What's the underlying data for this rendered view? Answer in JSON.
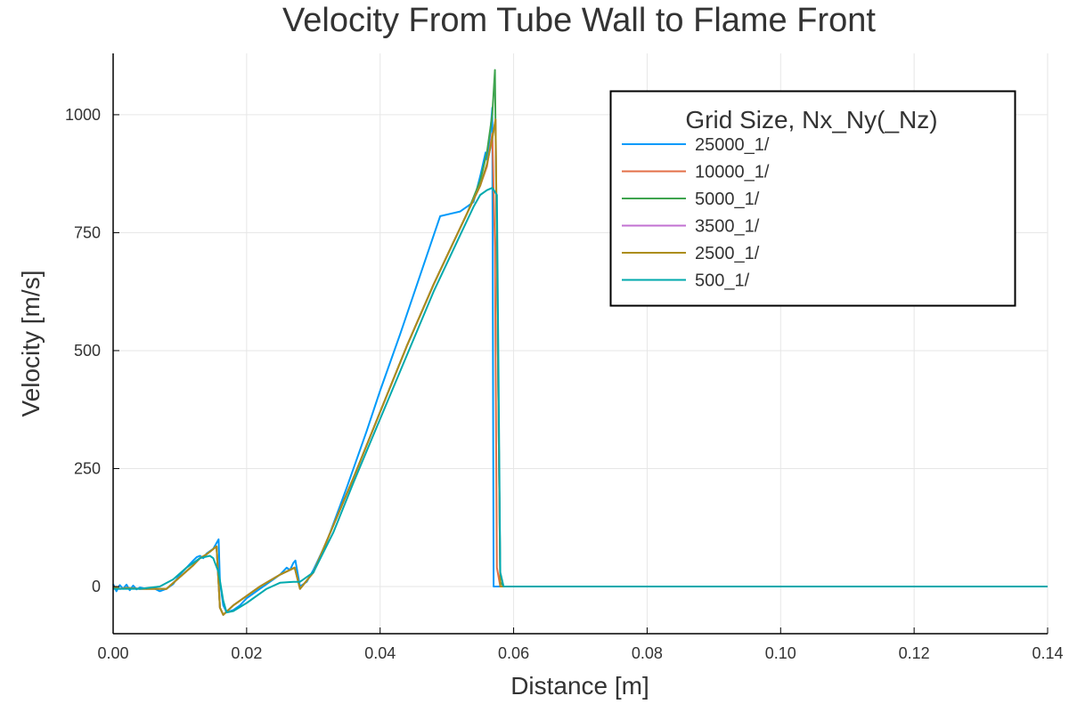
{
  "chart_data": {
    "type": "line",
    "title": "Velocity From Tube Wall to Flame Front",
    "xlabel": "Distance [m]",
    "ylabel": "Velocity [m/s]",
    "xlim": [
      0.0,
      0.14
    ],
    "ylim": [
      -100,
      1130
    ],
    "xticks": [
      0.0,
      0.02,
      0.04,
      0.06,
      0.08,
      0.1,
      0.12,
      0.14
    ],
    "xtick_labels": [
      "0.00",
      "0.02",
      "0.04",
      "0.06",
      "0.08",
      "0.10",
      "0.12",
      "0.14"
    ],
    "yticks": [
      0,
      250,
      500,
      750,
      1000
    ],
    "ytick_labels": [
      "0",
      "250",
      "500",
      "750",
      "1000"
    ],
    "grid": true,
    "legend": {
      "title": "Grid Size, Nx_Ny(_Nz)",
      "position": "top-right"
    },
    "series": [
      {
        "name": "25000_1/",
        "color": "#009AFA",
        "x": [
          0.0,
          0.0005,
          0.001,
          0.0015,
          0.002,
          0.0025,
          0.003,
          0.0035,
          0.004,
          0.005,
          0.006,
          0.007,
          0.008,
          0.009,
          0.01,
          0.011,
          0.012,
          0.0125,
          0.013,
          0.0135,
          0.014,
          0.015,
          0.0158,
          0.016,
          0.0165,
          0.017,
          0.018,
          0.019,
          0.02,
          0.022,
          0.024,
          0.025,
          0.026,
          0.0265,
          0.027,
          0.0273,
          0.028,
          0.029,
          0.03,
          0.032,
          0.035,
          0.038,
          0.04,
          0.043,
          0.046,
          0.049,
          0.052,
          0.053,
          0.054,
          0.055,
          0.0558,
          0.056,
          0.0565,
          0.0568,
          0.057,
          0.0575,
          0.06,
          0.08,
          0.1,
          0.12,
          0.14
        ],
        "y": [
          5,
          -10,
          3,
          -5,
          4,
          -8,
          2,
          -6,
          -2,
          -5,
          -3,
          -10,
          -5,
          5,
          25,
          40,
          55,
          62,
          65,
          60,
          70,
          80,
          100,
          10,
          -40,
          -55,
          -50,
          -40,
          -25,
          -5,
          15,
          25,
          40,
          35,
          50,
          55,
          0,
          10,
          35,
          95,
          210,
          330,
          415,
          535,
          660,
          785,
          795,
          805,
          815,
          870,
          920,
          905,
          960,
          1015,
          0,
          0,
          0,
          0,
          0,
          0,
          0
        ]
      },
      {
        "name": "10000_1/",
        "color": "#E36F47",
        "x": [
          0.0,
          0.001,
          0.002,
          0.004,
          0.006,
          0.008,
          0.01,
          0.012,
          0.013,
          0.014,
          0.0155,
          0.016,
          0.0165,
          0.018,
          0.02,
          0.022,
          0.025,
          0.0272,
          0.028,
          0.03,
          0.033,
          0.036,
          0.04,
          0.044,
          0.048,
          0.05,
          0.053,
          0.055,
          0.056,
          0.0568,
          0.0572,
          0.0575,
          0.058,
          0.06,
          0.08,
          0.1,
          0.12,
          0.14
        ],
        "y": [
          0,
          -5,
          -3,
          -5,
          -5,
          -5,
          20,
          45,
          60,
          68,
          85,
          -45,
          -60,
          -40,
          -20,
          0,
          25,
          40,
          -5,
          30,
          130,
          230,
          370,
          510,
          640,
          700,
          790,
          850,
          890,
          960,
          720,
          40,
          0,
          0,
          0,
          0,
          0,
          0
        ]
      },
      {
        "name": "5000_1/",
        "color": "#3EA44E",
        "x": [
          0.0,
          0.001,
          0.002,
          0.004,
          0.006,
          0.008,
          0.01,
          0.012,
          0.013,
          0.014,
          0.0155,
          0.016,
          0.0165,
          0.018,
          0.02,
          0.022,
          0.025,
          0.0272,
          0.028,
          0.03,
          0.033,
          0.036,
          0.04,
          0.044,
          0.048,
          0.05,
          0.053,
          0.055,
          0.056,
          0.0568,
          0.0572,
          0.058,
          0.0585,
          0.06,
          0.08,
          0.1,
          0.12,
          0.14
        ],
        "y": [
          0,
          -5,
          -3,
          -5,
          -5,
          -5,
          20,
          45,
          60,
          68,
          85,
          -45,
          -60,
          -40,
          -20,
          0,
          25,
          40,
          -5,
          30,
          130,
          230,
          370,
          510,
          640,
          700,
          790,
          860,
          920,
          1000,
          1095,
          10,
          0,
          0,
          0,
          0,
          0,
          0
        ]
      },
      {
        "name": "3500_1/",
        "color": "#C271D2",
        "x": [
          0.0,
          0.001,
          0.002,
          0.004,
          0.006,
          0.008,
          0.01,
          0.012,
          0.013,
          0.014,
          0.0155,
          0.016,
          0.0165,
          0.018,
          0.02,
          0.022,
          0.025,
          0.0272,
          0.028,
          0.03,
          0.033,
          0.036,
          0.04,
          0.044,
          0.048,
          0.05,
          0.053,
          0.055,
          0.056,
          0.0568,
          0.0573,
          0.058,
          0.06,
          0.08,
          0.1,
          0.12,
          0.14
        ],
        "y": [
          0,
          -5,
          -3,
          -5,
          -5,
          -5,
          20,
          45,
          60,
          68,
          85,
          -45,
          -60,
          -40,
          -20,
          0,
          25,
          40,
          -5,
          30,
          130,
          230,
          370,
          510,
          640,
          700,
          790,
          850,
          895,
          950,
          990,
          0,
          0,
          0,
          0,
          0,
          0
        ]
      },
      {
        "name": "2500_1/",
        "color": "#AC8D18",
        "x": [
          0.0,
          0.001,
          0.002,
          0.004,
          0.006,
          0.008,
          0.01,
          0.012,
          0.013,
          0.014,
          0.0155,
          0.016,
          0.0165,
          0.018,
          0.02,
          0.022,
          0.025,
          0.0272,
          0.028,
          0.03,
          0.033,
          0.036,
          0.04,
          0.044,
          0.048,
          0.05,
          0.053,
          0.055,
          0.056,
          0.0568,
          0.0573,
          0.058,
          0.06,
          0.08,
          0.1,
          0.12,
          0.14
        ],
        "y": [
          0,
          -5,
          -3,
          -5,
          -5,
          -5,
          20,
          45,
          60,
          68,
          85,
          -45,
          -60,
          -40,
          -20,
          0,
          25,
          40,
          -5,
          30,
          130,
          230,
          370,
          510,
          640,
          700,
          790,
          850,
          895,
          950,
          990,
          0,
          0,
          0,
          0,
          0,
          0
        ]
      },
      {
        "name": "500_1/",
        "color": "#00A9AD",
        "x": [
          0.0,
          0.004,
          0.007,
          0.009,
          0.011,
          0.013,
          0.0145,
          0.015,
          0.0158,
          0.0165,
          0.017,
          0.018,
          0.02,
          0.023,
          0.025,
          0.027,
          0.028,
          0.03,
          0.033,
          0.036,
          0.04,
          0.044,
          0.048,
          0.052,
          0.054,
          0.055,
          0.056,
          0.0568,
          0.0575,
          0.058,
          0.0585,
          0.06,
          0.08,
          0.1,
          0.12,
          0.14
        ],
        "y": [
          -5,
          -5,
          0,
          15,
          40,
          60,
          65,
          60,
          30,
          -30,
          -55,
          -52,
          -35,
          -5,
          8,
          10,
          10,
          30,
          115,
          220,
          355,
          490,
          625,
          745,
          805,
          830,
          840,
          845,
          830,
          30,
          0,
          0,
          0,
          0,
          0,
          0
        ]
      }
    ]
  }
}
